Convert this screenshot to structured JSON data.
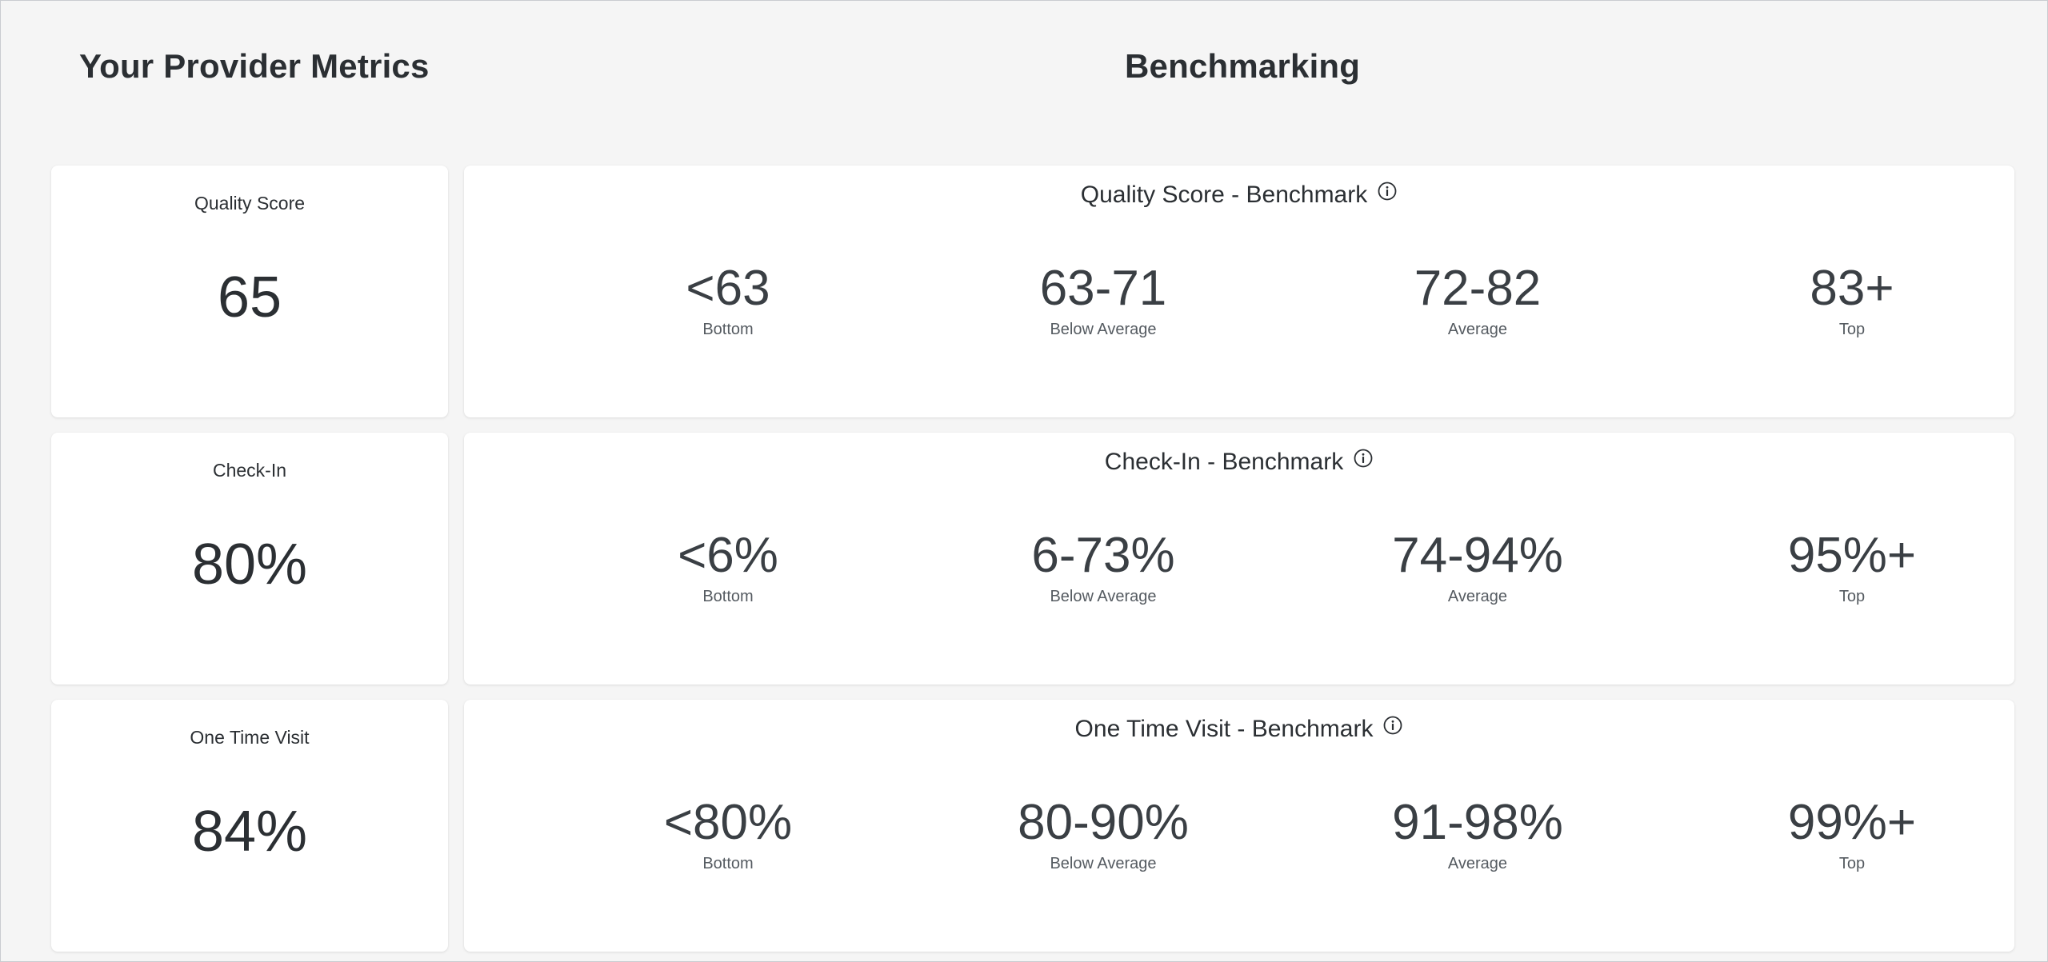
{
  "headings": {
    "left": "Your Provider Metrics",
    "right": "Benchmarking"
  },
  "rows": [
    {
      "metric": {
        "label": "Quality Score",
        "value": "65"
      },
      "benchmark": {
        "title": "Quality Score - Benchmark",
        "info_icon": "info-circle-icon",
        "tiers": [
          {
            "range": "<63",
            "label": "Bottom"
          },
          {
            "range": "63-71",
            "label": "Below Average"
          },
          {
            "range": "72-82",
            "label": "Average"
          },
          {
            "range": "83+",
            "label": "Top"
          }
        ]
      }
    },
    {
      "metric": {
        "label": "Check-In",
        "value": "80%"
      },
      "benchmark": {
        "title": "Check-In - Benchmark",
        "info_icon": "info-circle-icon",
        "tiers": [
          {
            "range": "<6%",
            "label": "Bottom"
          },
          {
            "range": "6-73%",
            "label": "Below Average"
          },
          {
            "range": "74-94%",
            "label": "Average"
          },
          {
            "range": "95%+",
            "label": "Top"
          }
        ]
      }
    },
    {
      "metric": {
        "label": "One Time Visit",
        "value": "84%"
      },
      "benchmark": {
        "title": "One Time Visit - Benchmark",
        "info_icon": "info-circle-icon",
        "tiers": [
          {
            "range": "<80%",
            "label": "Bottom"
          },
          {
            "range": "80-90%",
            "label": "Below Average"
          },
          {
            "range": "91-98%",
            "label": "Average"
          },
          {
            "range": "99%+",
            "label": "Top"
          }
        ]
      }
    }
  ],
  "colors": {
    "page_background": "#f5f5f5",
    "card_background": "#ffffff",
    "text": "#2b2f33"
  }
}
